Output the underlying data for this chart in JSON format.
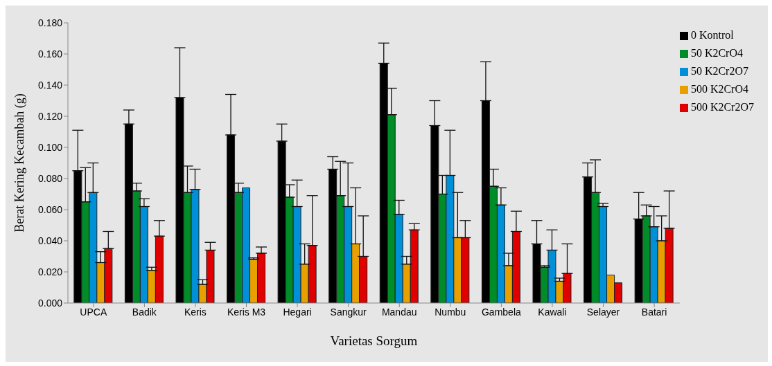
{
  "chart_data": {
    "type": "bar",
    "xlabel": "Varietas Sorgum",
    "ylabel": "Berat Kering Kecambah  (g)",
    "categories": [
      "UPCA",
      "Badik",
      "Keris",
      "Keris M3",
      "Hegari",
      "Sangkur",
      "Mandau",
      "Numbu",
      "Gambela",
      "Kawali",
      "Selayer",
      "Batari"
    ],
    "series": [
      {
        "name": "0 Kontrol",
        "color": "#000000",
        "values": [
          0.085,
          0.115,
          0.132,
          0.108,
          0.104,
          0.086,
          0.154,
          0.114,
          0.13,
          0.038,
          0.081,
          0.054
        ],
        "errors": [
          [
            0.085,
            0.111
          ],
          [
            0.115,
            0.124
          ],
          [
            0.132,
            0.164
          ],
          [
            0.108,
            0.134
          ],
          [
            0.104,
            0.115
          ],
          [
            0.086,
            0.094
          ],
          [
            0.154,
            0.167
          ],
          [
            0.114,
            0.13
          ],
          [
            0.13,
            0.155
          ],
          [
            0.038,
            0.053
          ],
          [
            0.081,
            0.09
          ],
          [
            0.054,
            0.071
          ]
        ]
      },
      {
        "name": "50 K2CrO4",
        "color": "#008c28",
        "values": [
          0.065,
          0.072,
          0.071,
          0.071,
          0.068,
          0.069,
          0.121,
          0.07,
          0.075,
          0.023,
          0.071,
          0.056
        ],
        "errors": [
          [
            0.065,
            0.087
          ],
          [
            0.072,
            0.077
          ],
          [
            0.071,
            0.088
          ],
          [
            0.071,
            0.077
          ],
          [
            0.068,
            0.076
          ],
          [
            0.069,
            0.091
          ],
          [
            0.121,
            0.138
          ],
          [
            0.07,
            0.082
          ],
          [
            0.075,
            0.086
          ],
          [
            0.023,
            0.024
          ],
          [
            0.071,
            0.092
          ],
          [
            0.056,
            0.063
          ]
        ]
      },
      {
        "name": "50 K2Cr2O7",
        "color": "#0090d8",
        "values": [
          0.071,
          0.062,
          0.073,
          0.074,
          0.062,
          0.062,
          0.057,
          0.082,
          0.063,
          0.034,
          0.062,
          0.049
        ],
        "errors": [
          [
            0.071,
            0.09
          ],
          [
            0.062,
            0.067
          ],
          [
            0.073,
            0.086
          ],
          null,
          [
            0.062,
            0.079
          ],
          [
            0.062,
            0.09
          ],
          [
            0.057,
            0.066
          ],
          [
            0.082,
            0.111
          ],
          [
            0.063,
            0.074
          ],
          [
            0.034,
            0.047
          ],
          [
            0.062,
            0.064
          ],
          [
            0.049,
            0.062
          ]
        ]
      },
      {
        "name": "500 K2CrO4",
        "color": "#e8a000",
        "values": [
          0.026,
          0.021,
          0.012,
          0.028,
          0.025,
          0.038,
          0.025,
          0.042,
          0.024,
          0.014,
          0.018,
          0.04
        ],
        "errors": [
          [
            0.026,
            0.033
          ],
          [
            0.021,
            0.023
          ],
          [
            0.012,
            0.015
          ],
          [
            0.028,
            0.029
          ],
          [
            0.025,
            0.038
          ],
          [
            0.038,
            0.074
          ],
          [
            0.025,
            0.03
          ],
          [
            0.042,
            0.071
          ],
          [
            0.024,
            0.032
          ],
          [
            0.014,
            0.016
          ],
          null,
          [
            0.04,
            0.056
          ]
        ]
      },
      {
        "name": "500 K2Cr2O7",
        "color": "#e00000",
        "values": [
          0.035,
          0.043,
          0.034,
          0.032,
          0.037,
          0.03,
          0.047,
          0.042,
          0.046,
          0.019,
          0.013,
          0.048
        ],
        "errors": [
          [
            0.035,
            0.046
          ],
          [
            0.043,
            0.053
          ],
          [
            0.034,
            0.039
          ],
          [
            0.032,
            0.036
          ],
          [
            0.037,
            0.069
          ],
          [
            0.03,
            0.056
          ],
          [
            0.047,
            0.051
          ],
          [
            0.042,
            0.053
          ],
          [
            0.046,
            0.059
          ],
          [
            0.019,
            0.038
          ],
          null,
          [
            0.048,
            0.072
          ]
        ]
      }
    ],
    "ylim": [
      0,
      0.18
    ],
    "yticks": [
      {
        "value": 0,
        "label": "0.000"
      },
      {
        "value": 0.02,
        "label": "0.020"
      },
      {
        "value": 0.04,
        "label": "0.040"
      },
      {
        "value": 0.06,
        "label": "0.060"
      },
      {
        "value": 0.08,
        "label": "0.080"
      },
      {
        "value": 0.1,
        "label": "0.100"
      },
      {
        "value": 0.12,
        "label": "0.120"
      },
      {
        "value": 0.14,
        "label": "0.140"
      },
      {
        "value": 0.16,
        "label": "0.160"
      },
      {
        "value": 0.18,
        "label": "0.180"
      }
    ],
    "grid": false,
    "legend": "top right"
  }
}
